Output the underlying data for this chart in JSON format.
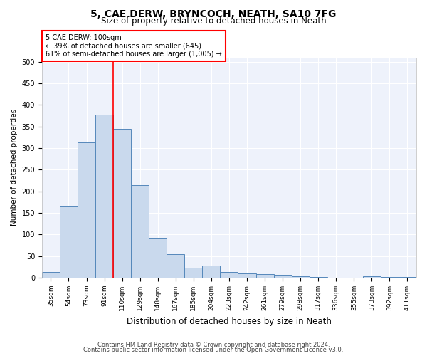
{
  "title1": "5, CAE DERW, BRYNCOCH, NEATH, SA10 7FG",
  "title2": "Size of property relative to detached houses in Neath",
  "xlabel": "Distribution of detached houses by size in Neath",
  "ylabel": "Number of detached properties",
  "footnote1": "Contains HM Land Registry data © Crown copyright and database right 2024.",
  "footnote2": "Contains public sector information licensed under the Open Government Licence v3.0.",
  "annotation_line1": "5 CAE DERW: 100sqm",
  "annotation_line2": "← 39% of detached houses are smaller (645)",
  "annotation_line3": "61% of semi-detached houses are larger (1,005) →",
  "bar_color": "#c9d9ed",
  "bar_edge_color": "#5588bb",
  "vline_color": "red",
  "categories": [
    "35sqm",
    "54sqm",
    "73sqm",
    "91sqm",
    "110sqm",
    "129sqm",
    "148sqm",
    "167sqm",
    "185sqm",
    "204sqm",
    "223sqm",
    "242sqm",
    "261sqm",
    "279sqm",
    "298sqm",
    "317sqm",
    "336sqm",
    "355sqm",
    "373sqm",
    "392sqm",
    "411sqm"
  ],
  "values": [
    13,
    165,
    313,
    378,
    345,
    215,
    93,
    55,
    23,
    28,
    14,
    10,
    8,
    6,
    4,
    1,
    0,
    0,
    3,
    1,
    1
  ],
  "ylim": [
    0,
    510
  ],
  "yticks": [
    0,
    50,
    100,
    150,
    200,
    250,
    300,
    350,
    400,
    450,
    500
  ],
  "background_color": "#eef2fb",
  "grid_color": "#ffffff",
  "title1_fontsize": 10,
  "title2_fontsize": 8.5,
  "ylabel_fontsize": 7.5,
  "xlabel_fontsize": 8.5,
  "tick_fontsize": 6.5,
  "footnote_fontsize": 6,
  "annot_fontsize": 7
}
